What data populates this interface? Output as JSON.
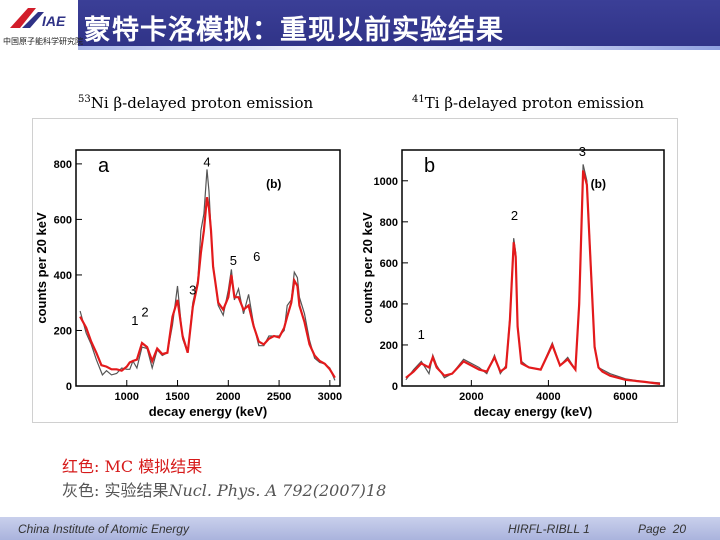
{
  "header": {
    "title": "蒙特卡洛模拟：重现以前实验结果",
    "logo_text": "中国原子能科学研究院"
  },
  "chart_data": [
    {
      "type": "line",
      "title": "β-delayed proton emission",
      "nucleus_mass": "53",
      "nucleus_symbol": "Ni",
      "panel_letter": "a",
      "sub_label": "(b)",
      "xlabel": "decay energy (keV)",
      "ylabel": "counts per 20 keV",
      "xlim": [
        500,
        3100
      ],
      "ylim": [
        0,
        850
      ],
      "xticks": [
        1000,
        1500,
        2000,
        2500,
        3000
      ],
      "yticks": [
        0,
        200,
        400,
        600,
        800
      ],
      "series": [
        {
          "name": "Experiment",
          "color": "#555555",
          "x": [
            540,
            600,
            650,
            700,
            760,
            800,
            850,
            900,
            950,
            1000,
            1030,
            1060,
            1100,
            1150,
            1200,
            1250,
            1300,
            1350,
            1400,
            1450,
            1500,
            1550,
            1600,
            1650,
            1700,
            1730,
            1760,
            1790,
            1810,
            1830,
            1850,
            1870,
            1900,
            1950,
            2000,
            2030,
            2060,
            2100,
            2150,
            2200,
            2250,
            2300,
            2350,
            2400,
            2450,
            2500,
            2550,
            2580,
            2620,
            2650,
            2680,
            2700,
            2750,
            2800,
            2850,
            2900,
            2950,
            3000,
            3050
          ],
          "y": [
            270,
            190,
            150,
            95,
            40,
            55,
            40,
            45,
            65,
            60,
            60,
            90,
            65,
            140,
            135,
            65,
            130,
            110,
            120,
            220,
            360,
            170,
            120,
            300,
            380,
            560,
            620,
            780,
            700,
            560,
            440,
            380,
            290,
            255,
            345,
            420,
            310,
            350,
            260,
            330,
            220,
            145,
            145,
            180,
            180,
            180,
            200,
            290,
            310,
            410,
            390,
            320,
            260,
            165,
            100,
            85,
            80,
            65,
            20
          ]
        },
        {
          "name": "MC",
          "color": "#e31a1c",
          "x": [
            540,
            600,
            650,
            700,
            750,
            800,
            850,
            900,
            950,
            1000,
            1030,
            1060,
            1100,
            1150,
            1200,
            1250,
            1300,
            1350,
            1400,
            1450,
            1500,
            1550,
            1600,
            1650,
            1700,
            1730,
            1760,
            1790,
            1810,
            1830,
            1850,
            1870,
            1900,
            1950,
            2000,
            2030,
            2060,
            2100,
            2150,
            2200,
            2250,
            2300,
            2350,
            2400,
            2450,
            2500,
            2550,
            2580,
            2620,
            2650,
            2680,
            2700,
            2750,
            2800,
            2850,
            2900,
            2950,
            3000,
            3050
          ],
          "y": [
            250,
            210,
            160,
            120,
            75,
            70,
            60,
            60,
            55,
            70,
            85,
            90,
            95,
            155,
            140,
            90,
            135,
            115,
            120,
            250,
            310,
            180,
            120,
            285,
            370,
            480,
            560,
            680,
            640,
            560,
            430,
            380,
            300,
            275,
            320,
            400,
            320,
            320,
            275,
            290,
            215,
            160,
            150,
            170,
            180,
            175,
            210,
            250,
            300,
            380,
            360,
            290,
            230,
            150,
            110,
            90,
            80,
            60,
            30
          ]
        }
      ],
      "peaks": [
        {
          "label": "1",
          "x": 1080,
          "y": 220
        },
        {
          "label": "2",
          "x": 1180,
          "y": 250
        },
        {
          "label": "3",
          "x": 1650,
          "y": 330
        },
        {
          "label": "4",
          "x": 1790,
          "y": 790
        },
        {
          "label": "5",
          "x": 2050,
          "y": 435
        },
        {
          "label": "6",
          "x": 2280,
          "y": 450
        }
      ]
    },
    {
      "type": "line",
      "title": "β-delayed proton emission",
      "nucleus_mass": "41",
      "nucleus_symbol": "Ti",
      "panel_letter": "b",
      "sub_label": "(b)",
      "xlabel": "decay energy (keV)",
      "ylabel": "counts per 20 keV",
      "xlim": [
        200,
        7000
      ],
      "ylim": [
        0,
        1150
      ],
      "xticks": [
        2000,
        4000,
        6000
      ],
      "yticks": [
        0,
        200,
        400,
        600,
        800,
        1000
      ],
      "series": [
        {
          "name": "Experiment",
          "color": "#555555",
          "x": [
            300,
            500,
            700,
            900,
            1000,
            1100,
            1300,
            1500,
            1800,
            2200,
            2400,
            2600,
            2750,
            2900,
            3000,
            3100,
            3150,
            3200,
            3300,
            3500,
            3800,
            4100,
            4300,
            4500,
            4700,
            4800,
            4900,
            5000,
            5100,
            5200,
            5300,
            5400,
            5600,
            6000,
            6500,
            6900
          ],
          "y": [
            30,
            80,
            120,
            60,
            150,
            100,
            40,
            60,
            130,
            90,
            60,
            150,
            60,
            100,
            340,
            720,
            650,
            300,
            120,
            90,
            80,
            210,
            100,
            140,
            80,
            420,
            1080,
            1000,
            600,
            200,
            90,
            80,
            60,
            35,
            20,
            15
          ]
        },
        {
          "name": "MC",
          "color": "#e31a1c",
          "x": [
            300,
            500,
            700,
            900,
            1000,
            1100,
            1300,
            1500,
            1800,
            2200,
            2400,
            2600,
            2750,
            2900,
            3000,
            3100,
            3150,
            3200,
            3300,
            3500,
            3800,
            4100,
            4300,
            4500,
            4700,
            4800,
            4900,
            5000,
            5100,
            5200,
            5300,
            5400,
            5600,
            6000,
            6500,
            6900
          ],
          "y": [
            40,
            70,
            110,
            90,
            140,
            90,
            50,
            60,
            120,
            80,
            70,
            140,
            70,
            90,
            320,
            700,
            630,
            290,
            110,
            90,
            80,
            200,
            100,
            130,
            80,
            400,
            1050,
            980,
            580,
            190,
            90,
            70,
            50,
            30,
            20,
            10
          ]
        }
      ],
      "peaks": [
        {
          "label": "1",
          "x": 700,
          "y": 230
        },
        {
          "label": "2",
          "x": 3120,
          "y": 810
        },
        {
          "label": "3",
          "x": 4880,
          "y": 1120
        }
      ]
    }
  ],
  "captions": {
    "red_line": "红色: MC 模拟结果",
    "grey_prefix": "灰色: 实验结果",
    "grey_ref": "Nucl. Phys. A 792(2007)18"
  },
  "footer": {
    "left": "China Institute of Atomic Energy",
    "middle": "HIRFL-RIBLL 1",
    "page_label": "Page",
    "page_number": "20"
  },
  "colors": {
    "header": "#2f3286",
    "mc": "#e31a1c",
    "experiment": "#555555",
    "caption_red": "#d61a1a"
  }
}
